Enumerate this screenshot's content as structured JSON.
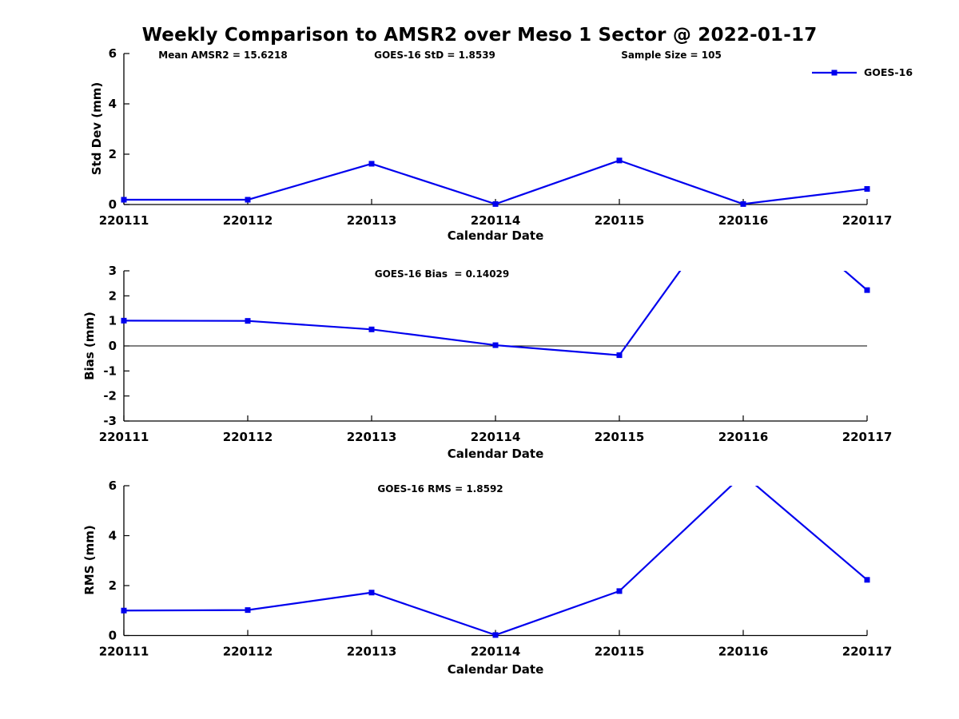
{
  "figure": {
    "title": "Weekly Comparison to AMSR2 over Meso 1 Sector @ 2022-01-17"
  },
  "legend": {
    "label": "GOES-16"
  },
  "colors": {
    "series": "#0000EE",
    "axis": "#000000"
  },
  "chart_data": [
    {
      "id": "stddev",
      "type": "line",
      "ylabel": "Std Dev (mm)",
      "xlabel": "Calendar Date",
      "annotations": [
        "Mean AMSR2 = 15.6218",
        "GOES-16 StD = 1.8539",
        "Sample Size = 105"
      ],
      "categories": [
        "220111",
        "220112",
        "220113",
        "220114",
        "220115",
        "220116",
        "220117"
      ],
      "series": [
        {
          "name": "GOES-16",
          "values": [
            0.19,
            0.19,
            1.62,
            0.02,
            1.75,
            0.02,
            0.62
          ]
        }
      ],
      "ylim": [
        0,
        6
      ],
      "yticks": [
        0,
        2,
        4,
        6
      ],
      "zero_line": false,
      "grid": false,
      "legend_position": "top-right"
    },
    {
      "id": "bias",
      "type": "line",
      "ylabel": "Bias (mm)",
      "xlabel": "Calendar Date",
      "annotations": [
        "GOES-16 Bias  = 0.14029"
      ],
      "categories": [
        "220111",
        "220112",
        "220113",
        "220114",
        "220115",
        "220116",
        "220117"
      ],
      "series": [
        {
          "name": "GOES-16",
          "values": [
            1.01,
            1.0,
            0.66,
            0.03,
            -0.37,
            6.5,
            2.23
          ]
        }
      ],
      "ylim": [
        -3,
        3
      ],
      "yticks": [
        -3,
        -2,
        -1,
        0,
        1,
        2,
        3
      ],
      "zero_line": true,
      "grid": false,
      "note": "220116 value (~6.5) exceeds the y-axis range; the line is clipped at the top of the axes"
    },
    {
      "id": "rms",
      "type": "line",
      "ylabel": "RMS (mm)",
      "xlabel": "Calendar Date",
      "annotations": [
        "GOES-16 RMS = 1.8592"
      ],
      "categories": [
        "220111",
        "220112",
        "220113",
        "220114",
        "220115",
        "220116",
        "220117"
      ],
      "series": [
        {
          "name": "GOES-16",
          "values": [
            1.0,
            1.02,
            1.72,
            0.02,
            1.78,
            6.45,
            2.23
          ]
        }
      ],
      "ylim": [
        0,
        6
      ],
      "yticks": [
        0,
        2,
        4,
        6
      ],
      "zero_line": false,
      "grid": false,
      "note": "220116 value (~6.45) exceeds the y-axis range; the line is clipped at the top of the axes"
    }
  ]
}
